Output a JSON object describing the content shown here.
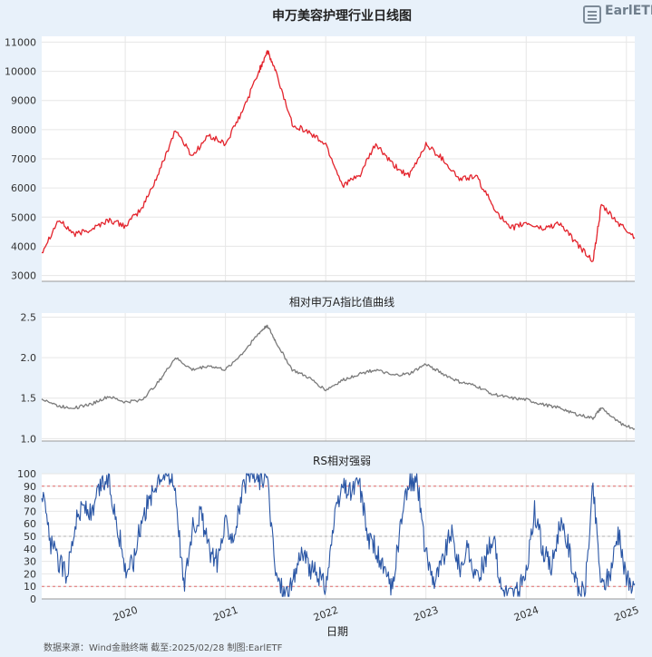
{
  "source_note": "数据来源：Wind金融终端 截至:2025/02/28 制图:EarlETF",
  "logo": {
    "text": "EarlETF",
    "icon": "earletf-logo-icon"
  },
  "chart_data": [
    {
      "type": "line",
      "title": "申万美容护理行业日线图",
      "color": "#e3232c",
      "ylim": [
        2800,
        11200
      ],
      "yticks": [
        3000,
        4000,
        5000,
        6000,
        7000,
        8000,
        9000,
        10000,
        11000
      ],
      "grid": true,
      "x": [
        "2019-03",
        "2019-05",
        "2019-07",
        "2019-09",
        "2019-11",
        "2020-01",
        "2020-03",
        "2020-05",
        "2020-07",
        "2020-09",
        "2020-11",
        "2021-01",
        "2021-03",
        "2021-05",
        "2021-06",
        "2021-07",
        "2021-09",
        "2021-11",
        "2022-01",
        "2022-03",
        "2022-05",
        "2022-07",
        "2022-09",
        "2022-11",
        "2023-01",
        "2023-03",
        "2023-05",
        "2023-07",
        "2023-09",
        "2023-11",
        "2024-01",
        "2024-03",
        "2024-05",
        "2024-07",
        "2024-09",
        "2024-10",
        "2024-12",
        "2025-02"
      ],
      "values": [
        3800,
        4900,
        4400,
        4600,
        4900,
        4700,
        5300,
        6500,
        8000,
        7100,
        7800,
        7500,
        8600,
        10000,
        10700,
        10000,
        8200,
        7900,
        7500,
        6100,
        6400,
        7500,
        6800,
        6400,
        7500,
        7000,
        6300,
        6400,
        5400,
        4600,
        4800,
        4600,
        4800,
        4100,
        3500,
        5400,
        4800,
        4300
      ]
    },
    {
      "type": "line",
      "title": "相对申万A指比值曲线",
      "color": "#7a7a7a",
      "ylim": [
        0.97,
        2.55
      ],
      "yticks": [
        1.0,
        1.5,
        2.0,
        2.5
      ],
      "grid": true,
      "x": [
        "2019-03",
        "2019-05",
        "2019-07",
        "2019-09",
        "2019-11",
        "2020-01",
        "2020-03",
        "2020-05",
        "2020-07",
        "2020-09",
        "2020-11",
        "2021-01",
        "2021-03",
        "2021-05",
        "2021-06",
        "2021-07",
        "2021-09",
        "2021-11",
        "2022-01",
        "2022-03",
        "2022-05",
        "2022-07",
        "2022-09",
        "2022-11",
        "2023-01",
        "2023-03",
        "2023-05",
        "2023-07",
        "2023-09",
        "2023-11",
        "2024-01",
        "2024-03",
        "2024-05",
        "2024-07",
        "2024-09",
        "2024-10",
        "2024-12",
        "2025-02"
      ],
      "values": [
        1.5,
        1.4,
        1.38,
        1.43,
        1.52,
        1.45,
        1.48,
        1.7,
        2.0,
        1.85,
        1.9,
        1.85,
        2.05,
        2.3,
        2.4,
        2.2,
        1.85,
        1.75,
        1.6,
        1.72,
        1.8,
        1.85,
        1.78,
        1.8,
        1.92,
        1.8,
        1.7,
        1.65,
        1.55,
        1.5,
        1.48,
        1.42,
        1.38,
        1.3,
        1.25,
        1.38,
        1.2,
        1.12
      ]
    },
    {
      "type": "line",
      "title": "RS相对强弱",
      "xlabel": "日期",
      "color": "#2a56a5",
      "ylim": [
        0,
        100
      ],
      "yticks": [
        0,
        10,
        20,
        30,
        40,
        50,
        60,
        70,
        80,
        90,
        100
      ],
      "reference_lines": [
        {
          "value": 90,
          "color": "#e06a6a"
        },
        {
          "value": 50,
          "color": "#b0b0b0"
        },
        {
          "value": 10,
          "color": "#e06a6a"
        }
      ],
      "grid": true,
      "x": [
        "2019-03",
        "2019-04",
        "2019-05",
        "2019-06",
        "2019-07",
        "2019-08",
        "2019-09",
        "2019-10",
        "2019-11",
        "2019-12",
        "2020-01",
        "2020-02",
        "2020-03",
        "2020-04",
        "2020-05",
        "2020-06",
        "2020-07",
        "2020-08",
        "2020-09",
        "2020-10",
        "2020-11",
        "2020-12",
        "2021-01",
        "2021-02",
        "2021-03",
        "2021-04",
        "2021-05",
        "2021-06",
        "2021-07",
        "2021-08",
        "2021-09",
        "2021-10",
        "2021-11",
        "2021-12",
        "2022-01",
        "2022-02",
        "2022-03",
        "2022-04",
        "2022-05",
        "2022-06",
        "2022-07",
        "2022-08",
        "2022-09",
        "2022-10",
        "2022-11",
        "2022-12",
        "2023-01",
        "2023-02",
        "2023-03",
        "2023-04",
        "2023-05",
        "2023-06",
        "2023-07",
        "2023-08",
        "2023-09",
        "2023-10",
        "2023-11",
        "2023-12",
        "2024-01",
        "2024-02",
        "2024-03",
        "2024-04",
        "2024-05",
        "2024-06",
        "2024-07",
        "2024-08",
        "2024-09",
        "2024-10",
        "2024-11",
        "2024-12",
        "2025-01",
        "2025-02"
      ],
      "values": [
        88,
        45,
        30,
        20,
        60,
        75,
        65,
        90,
        95,
        60,
        25,
        30,
        65,
        80,
        100,
        100,
        90,
        10,
        55,
        70,
        40,
        30,
        60,
        50,
        85,
        100,
        95,
        98,
        20,
        5,
        10,
        40,
        25,
        20,
        10,
        60,
        90,
        85,
        95,
        50,
        40,
        20,
        10,
        60,
        95,
        92,
        35,
        15,
        30,
        55,
        25,
        40,
        15,
        30,
        50,
        10,
        5,
        6,
        20,
        70,
        40,
        25,
        60,
        45,
        10,
        5,
        90,
        10,
        20,
        55,
        15,
        12
      ]
    }
  ],
  "x_axis": {
    "tick_labels": [
      "2020",
      "2021",
      "2022",
      "2023",
      "2024",
      "2025"
    ],
    "range": [
      "2019-03",
      "2025-02"
    ]
  }
}
